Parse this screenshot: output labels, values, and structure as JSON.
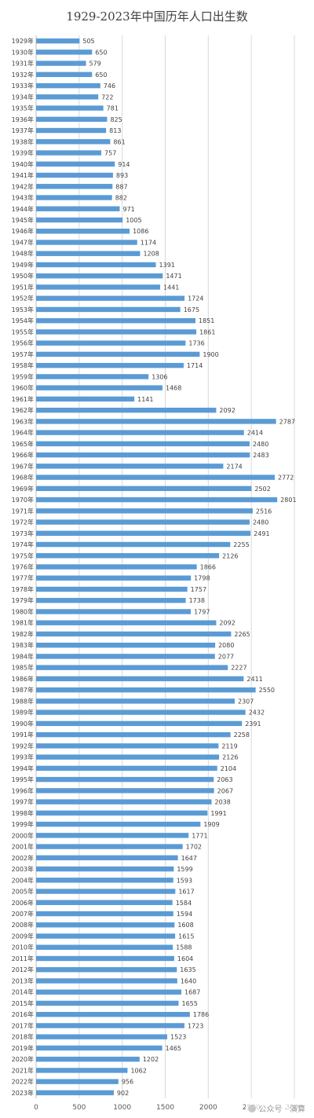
{
  "chart_data": {
    "type": "bar",
    "orientation": "horizontal",
    "title": "1929-2023年中国历年人口出生数",
    "xlim": [
      0,
      3000
    ],
    "xticks": [
      0,
      500,
      1000,
      1500,
      2000,
      2500,
      3000
    ],
    "grid": true,
    "bar_color": "#5b9bd5",
    "categories": [
      "1929年",
      "1930年",
      "1931年",
      "1932年",
      "1933年",
      "1934年",
      "1935年",
      "1936年",
      "1937年",
      "1938年",
      "1939年",
      "1940年",
      "1941年",
      "1942年",
      "1943年",
      "1944年",
      "1945年",
      "1946年",
      "1947年",
      "1948年",
      "1949年",
      "1950年",
      "1951年",
      "1952年",
      "1953年",
      "1954年",
      "1955年",
      "1956年",
      "1957年",
      "1958年",
      "1959年",
      "1960年",
      "1961年",
      "1962年",
      "1963年",
      "1964年",
      "1965年",
      "1966年",
      "1967年",
      "1968年",
      "1969年",
      "1970年",
      "1971年",
      "1972年",
      "1973年",
      "1974年",
      "1975年",
      "1976年",
      "1977年",
      "1978年",
      "1979年",
      "1980年",
      "1981年",
      "1982年",
      "1983年",
      "1984年",
      "1985年",
      "1986年",
      "1987年",
      "1988年",
      "1989年",
      "1990年",
      "1991年",
      "1992年",
      "1993年",
      "1994年",
      "1995年",
      "1996年",
      "1997年",
      "1998年",
      "1999年",
      "2000年",
      "2001年",
      "2002年",
      "2003年",
      "2004年",
      "2005年",
      "2006年",
      "2007年",
      "2008年",
      "2009年",
      "2010年",
      "2011年",
      "2012年",
      "2013年",
      "2014年",
      "2015年",
      "2016年",
      "2017年",
      "2018年",
      "2019年",
      "2020年",
      "2021年",
      "2022年",
      "2023年"
    ],
    "values": [
      505,
      650,
      579,
      650,
      746,
      722,
      781,
      825,
      813,
      861,
      757,
      914,
      893,
      887,
      882,
      971,
      1005,
      1086,
      1174,
      1208,
      1391,
      1471,
      1441,
      1724,
      1675,
      1851,
      1861,
      1736,
      1900,
      1714,
      1306,
      1468,
      1141,
      2092,
      2787,
      2414,
      2480,
      2483,
      2174,
      2772,
      2502,
      2801,
      2516,
      2480,
      2491,
      2255,
      2126,
      1866,
      1798,
      1757,
      1738,
      1797,
      2092,
      2265,
      2080,
      2077,
      2227,
      2411,
      2550,
      2307,
      2432,
      2391,
      2258,
      2119,
      2126,
      2104,
      2063,
      2067,
      2038,
      1991,
      1909,
      1771,
      1702,
      1647,
      1599,
      1593,
      1617,
      1584,
      1594,
      1608,
      1615,
      1588,
      1604,
      1635,
      1640,
      1687,
      1655,
      1786,
      1723,
      1523,
      1465,
      1202,
      1062,
      956,
      902
    ]
  },
  "watermark": {
    "text": "公众号 · 演算"
  }
}
